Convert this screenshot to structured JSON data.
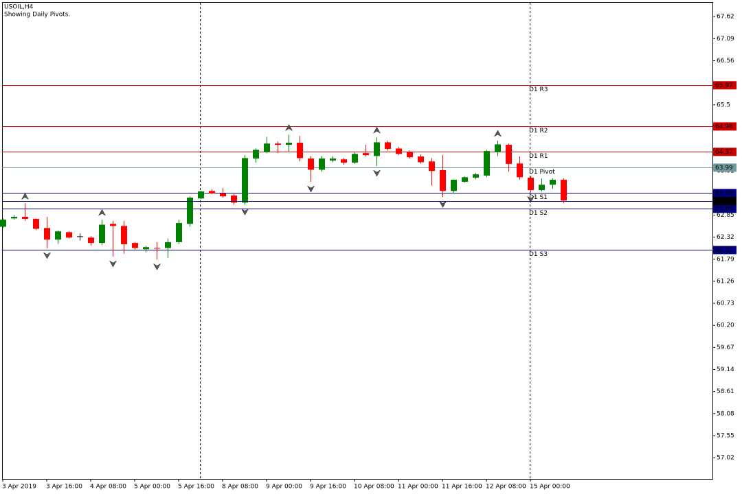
{
  "chart_data": {
    "type": "candlestick",
    "title": "USOIL,H4",
    "subtitle": "Showing Daily Pivots.",
    "categories": [
      "3 Apr 2019",
      null,
      null,
      null,
      "3 Apr 16:00",
      null,
      null,
      null,
      "4 Apr 08:00",
      null,
      null,
      null,
      "5 Apr 00:00",
      null,
      null,
      null,
      "5 Apr 16:00",
      null,
      null,
      null,
      "8 Apr 08:00",
      null,
      null,
      null,
      "9 Apr 00:00",
      null,
      null,
      null,
      "9 Apr 16:00",
      null,
      null,
      null,
      "10 Apr 08:00",
      null,
      null,
      null,
      "11 Apr 00:00",
      null,
      null,
      null,
      "11 Apr 16:00",
      null,
      null,
      null,
      "12 Apr 08:00",
      null,
      null,
      null,
      "15 Apr 00:00",
      null,
      null,
      null
    ],
    "open": [
      62.57,
      62.77,
      62.81,
      62.76,
      62.54,
      62.26,
      62.44,
      62.34,
      62.31,
      62.18,
      62.64,
      62.59,
      62.18,
      62.03,
      62.06,
      62.06,
      62.2,
      62.64,
      63.25,
      63.43,
      63.37,
      63.32,
      63.15,
      64.21,
      64.36,
      64.57,
      64.54,
      64.59,
      64.21,
      63.94,
      64.16,
      64.19,
      64.11,
      64.34,
      64.27,
      64.6,
      64.45,
      64.36,
      64.26,
      64.14,
      63.93,
      63.43,
      63.65,
      63.75,
      63.8,
      64.36,
      64.54,
      64.09,
      63.75,
      63.45,
      63.58,
      63.7
    ],
    "high": [
      62.77,
      62.85,
      63.13,
      62.77,
      62.81,
      62.48,
      62.46,
      62.41,
      62.34,
      62.74,
      62.71,
      62.71,
      62.2,
      62.11,
      62.2,
      62.29,
      62.74,
      63.3,
      63.43,
      63.47,
      63.5,
      63.35,
      64.29,
      64.45,
      64.73,
      64.62,
      64.78,
      64.75,
      64.27,
      64.27,
      64.26,
      64.22,
      64.36,
      64.54,
      64.72,
      64.64,
      64.49,
      64.4,
      64.31,
      64.22,
      64.29,
      63.71,
      63.78,
      63.86,
      64.42,
      64.64,
      64.57,
      64.26,
      63.78,
      63.73,
      63.73,
      63.73
    ],
    "low": [
      62.54,
      62.74,
      62.71,
      62.49,
      62.05,
      62.16,
      62.29,
      62.24,
      62.11,
      62.13,
      61.85,
      61.92,
      62.01,
      61.95,
      61.78,
      61.82,
      62.16,
      62.57,
      63.23,
      63.35,
      63.27,
      63.1,
      63.1,
      64.11,
      64.34,
      64.34,
      64.36,
      64.14,
      63.65,
      63.89,
      64.12,
      64.06,
      64.08,
      64.26,
      64.03,
      64.4,
      64.29,
      64.21,
      64.09,
      63.56,
      63.28,
      63.37,
      63.63,
      63.71,
      63.76,
      64.27,
      63.89,
      63.7,
      63.4,
      63.42,
      63.48,
      63.13
    ],
    "close": [
      62.74,
      62.81,
      62.76,
      62.52,
      62.26,
      62.46,
      62.31,
      62.34,
      62.18,
      62.62,
      62.59,
      62.15,
      62.06,
      62.08,
      62.05,
      62.2,
      62.66,
      63.27,
      63.42,
      63.37,
      63.3,
      63.15,
      64.22,
      64.42,
      64.57,
      64.54,
      64.59,
      64.22,
      63.94,
      64.21,
      64.21,
      64.11,
      64.32,
      64.29,
      64.6,
      64.44,
      64.32,
      64.24,
      64.12,
      63.91,
      63.43,
      63.7,
      63.76,
      63.83,
      64.39,
      64.55,
      64.08,
      63.76,
      63.45,
      63.58,
      63.7,
      63.2
    ],
    "up_color": "#008000",
    "down_color": "#ff0000",
    "ylim": [
      56.51,
      67.97
    ],
    "yticks": [
      67.62,
      67.09,
      66.56,
      65.5,
      63.91,
      62.85,
      62.32,
      61.79,
      61.26,
      60.73,
      {
        "value": 60.2,
        "label": "60.20"
      },
      59.67,
      59.14,
      58.61,
      58.08,
      57.55,
      57.02
    ],
    "pivots": {
      "names": [
        "D1 R3",
        "D1 R2",
        "D1 R1",
        "D1 Pivot",
        "D1 S1",
        "D1 S2",
        "D1 S3"
      ],
      "values": [
        65.97,
        64.98,
        64.37,
        63.99,
        63.38,
        63.0,
        62.01
      ],
      "value_labels": [
        "65.97",
        "64.98",
        "64.37",
        "63.99",
        "63.38",
        "63.00",
        "62.01"
      ],
      "colors": [
        "#cc0000",
        "#cc0000",
        "#cc0000",
        "#6f9aa0",
        "#000080",
        "#000080",
        "#000080"
      ]
    },
    "last_price": 63.19
  }
}
